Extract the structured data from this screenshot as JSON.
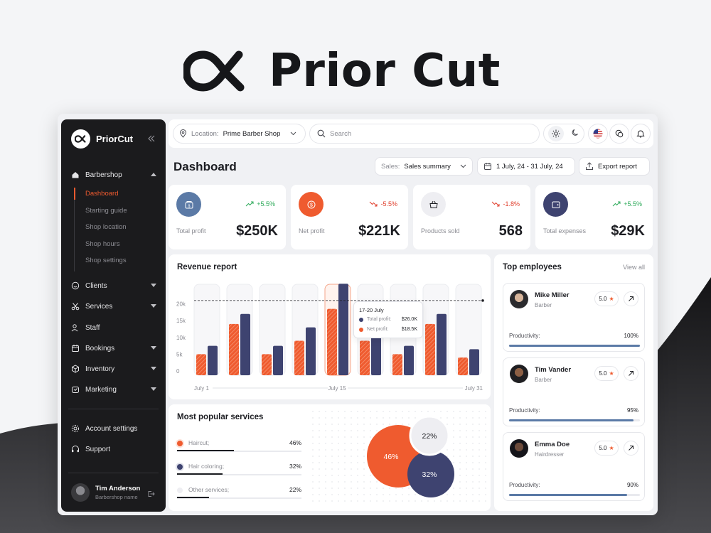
{
  "brand": {
    "title": "Prior Cut"
  },
  "sidebar": {
    "brand_name": "PriorCut",
    "group": {
      "label": "Barbershop",
      "subitems": [
        "Dashboard",
        "Starting guide",
        "Shop location",
        "Shop hours",
        "Shop settings"
      ],
      "active_index": 0
    },
    "items": [
      {
        "label": "Clients",
        "icon": "smile-icon",
        "has_caret": true
      },
      {
        "label": "Services",
        "icon": "scissors-icon",
        "has_caret": true
      },
      {
        "label": "Staff",
        "icon": "users-icon",
        "has_caret": false
      },
      {
        "label": "Bookings",
        "icon": "calendar-icon",
        "has_caret": true
      },
      {
        "label": "Inventory",
        "icon": "box-icon",
        "has_caret": true
      },
      {
        "label": "Marketing",
        "icon": "megaphone-icon",
        "has_caret": true
      }
    ],
    "bottom": [
      {
        "label": "Account settings",
        "icon": "gear-icon"
      },
      {
        "label": "Support",
        "icon": "headset-icon"
      }
    ],
    "user": {
      "name": "Tim Anderson",
      "role": "Barbershop name"
    }
  },
  "topbar": {
    "location_label": "Location:",
    "location_value": "Prime Barber Shop",
    "search_placeholder": "Search"
  },
  "header": {
    "title": "Dashboard",
    "sales_label": "Sales:",
    "sales_value": "Sales summary",
    "date_range": "1 July, 24 - 31 July, 24",
    "export_label": "Export report"
  },
  "stats": [
    {
      "label": "Total profit",
      "value": "$250K",
      "trend": "+5.5%",
      "direction": "up",
      "color": "#5b7aa6",
      "icon": "wallet-icon"
    },
    {
      "label": "Net profit",
      "value": "$221K",
      "trend": "-5.5%",
      "direction": "down",
      "color": "#ef5b2f",
      "icon": "dollar-icon"
    },
    {
      "label": "Products sold",
      "value": "568",
      "trend": "-1.8%",
      "direction": "down",
      "color": "#eeeef2",
      "icon": "basket-icon"
    },
    {
      "label": "Total expenses",
      "value": "$29K",
      "trend": "+5.5%",
      "direction": "up",
      "color": "#3e4370",
      "icon": "wallet-out-icon"
    }
  ],
  "revenue": {
    "title": "Revenue report",
    "tooltip": {
      "date": "17-20 July",
      "rows": [
        {
          "label": "Total profit:",
          "value": "$26.0K"
        },
        {
          "label": "Net profit:",
          "value": "$18.5K"
        }
      ]
    }
  },
  "chart_data": {
    "type": "bar",
    "title": "Revenue report",
    "x_tick_labels": [
      "July 1",
      "July 15",
      "July 31"
    ],
    "y_ticks": [
      "0",
      "5k",
      "10k",
      "15k",
      "20k"
    ],
    "ylim": [
      0,
      25000
    ],
    "series": [
      {
        "name": "Net profit",
        "color": "#ef5b2f",
        "values": [
          5000,
          14000,
          5000,
          9000,
          18500,
          9000,
          5000,
          14000,
          4000
        ]
      },
      {
        "name": "Total profit",
        "color": "#3e4370",
        "values": [
          7500,
          17000,
          7500,
          13000,
          26000,
          17000,
          7500,
          17000,
          6500
        ]
      }
    ],
    "highlight_index": 4,
    "reference_line": 21000,
    "grid": false
  },
  "services": {
    "title": "Most popular services",
    "items": [
      {
        "name": "Haircut;",
        "pct": "46%",
        "value": 46,
        "color": "#ef5b2f"
      },
      {
        "name": "Hair coloring;",
        "pct": "32%",
        "value": 32,
        "color": "#3e4370"
      },
      {
        "name": "Other services;",
        "pct": "22%",
        "value": 22,
        "color": "#eeeef2"
      }
    ],
    "bubbles": [
      "46%",
      "32%",
      "22%"
    ]
  },
  "employees": {
    "title": "Top employees",
    "view_all": "View all",
    "productivity_label": "Productivity:",
    "list": [
      {
        "name": "Mike Miller",
        "role": "Barber",
        "rating": "5.0",
        "productivity": "100%",
        "value": 100
      },
      {
        "name": "Tim Vander",
        "role": "Barber",
        "rating": "5.0",
        "productivity": "95%",
        "value": 95
      },
      {
        "name": "Emma Doe",
        "role": "Hairdresser",
        "rating": "5.0",
        "productivity": "90%",
        "value": 90
      }
    ]
  }
}
